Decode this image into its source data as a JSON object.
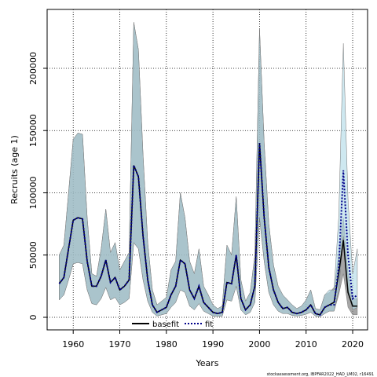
{
  "chart_data": {
    "type": "line",
    "x_label": "Years",
    "y_label": "Recruits (age 1)",
    "footer": "stockassessment.org, IBPFAR2022_HAD_LM02, r16491",
    "x": [
      1957,
      1958,
      1959,
      1960,
      1961,
      1962,
      1963,
      1964,
      1965,
      1966,
      1967,
      1968,
      1969,
      1970,
      1971,
      1972,
      1973,
      1974,
      1975,
      1976,
      1977,
      1978,
      1979,
      1980,
      1981,
      1982,
      1983,
      1984,
      1985,
      1986,
      1987,
      1988,
      1989,
      1990,
      1991,
      1992,
      1993,
      1994,
      1995,
      1996,
      1997,
      1998,
      1999,
      2000,
      2001,
      2002,
      2003,
      2004,
      2005,
      2006,
      2007,
      2008,
      2009,
      2010,
      2011,
      2012,
      2013,
      2014,
      2015,
      2016,
      2017,
      2018,
      2019,
      2020,
      2021
    ],
    "series": [
      {
        "name": "basefit",
        "color": "#000000",
        "band_color": "#808080",
        "values": [
          27000,
          32000,
          55000,
          78000,
          80000,
          79000,
          45000,
          25000,
          25000,
          33000,
          46000,
          28000,
          32000,
          22000,
          25000,
          30000,
          122000,
          113000,
          65000,
          30000,
          10000,
          4000,
          6000,
          8000,
          18000,
          25000,
          46000,
          43000,
          22000,
          15000,
          25000,
          12000,
          8000,
          4000,
          3000,
          4000,
          28000,
          27000,
          50000,
          15000,
          6000,
          10000,
          25000,
          140000,
          80000,
          40000,
          22000,
          12000,
          7000,
          8000,
          4000,
          3000,
          4000,
          6000,
          10000,
          3000,
          2000,
          8000,
          10000,
          12000,
          35000,
          62000,
          20000,
          9000,
          9000
        ],
        "upper": [
          50000,
          58000,
          100000,
          143000,
          148000,
          147000,
          80000,
          35000,
          33000,
          55000,
          87000,
          52000,
          60000,
          38000,
          45000,
          52000,
          237000,
          215000,
          130000,
          60000,
          22000,
          10000,
          13000,
          16000,
          38000,
          45000,
          100000,
          80000,
          45000,
          35000,
          55000,
          25000,
          18000,
          10000,
          7000,
          9000,
          58000,
          50000,
          97000,
          30000,
          13000,
          20000,
          50000,
          232000,
          140000,
          75000,
          42000,
          25000,
          18000,
          14000,
          10000,
          7000,
          9000,
          14000,
          22000,
          7000,
          6000,
          18000,
          20000,
          24000,
          50000,
          80000,
          35000,
          15000,
          15000
        ],
        "lower": [
          14000,
          18000,
          30000,
          43000,
          44000,
          43000,
          22000,
          11000,
          10000,
          15000,
          24000,
          14000,
          16000,
          10000,
          12000,
          15000,
          60000,
          55000,
          30000,
          13000,
          4000,
          1000,
          2000,
          3000,
          8000,
          12000,
          22000,
          20000,
          9000,
          6000,
          11000,
          5000,
          3000,
          1000,
          800,
          1000,
          14000,
          13000,
          25000,
          6000,
          2000,
          4000,
          12000,
          80000,
          45000,
          20000,
          10000,
          5000,
          3000,
          3000,
          1500,
          1000,
          1500,
          2500,
          4000,
          1000,
          500,
          3000,
          5000,
          5000,
          18000,
          35000,
          8000,
          2000,
          2000
        ]
      },
      {
        "name": "fit",
        "color": "#00008b",
        "band_color": "#add8e6",
        "values": [
          27000,
          32000,
          55000,
          78000,
          80000,
          79000,
          45000,
          25000,
          25000,
          33000,
          46000,
          28000,
          32000,
          22000,
          25000,
          30000,
          122000,
          113000,
          65000,
          30000,
          10000,
          4000,
          6000,
          8000,
          18000,
          25000,
          46000,
          43000,
          22000,
          15000,
          25000,
          12000,
          8000,
          4000,
          3000,
          4000,
          28000,
          27000,
          50000,
          15000,
          6000,
          10000,
          25000,
          140000,
          80000,
          40000,
          22000,
          12000,
          7000,
          8000,
          4000,
          3000,
          4000,
          6000,
          10000,
          3000,
          2000,
          8000,
          10000,
          10000,
          40000,
          118000,
          50000,
          15000,
          18000
        ],
        "upper": [
          50000,
          58000,
          100000,
          143000,
          148000,
          147000,
          80000,
          35000,
          33000,
          55000,
          87000,
          52000,
          60000,
          38000,
          45000,
          52000,
          237000,
          215000,
          130000,
          60000,
          22000,
          10000,
          13000,
          16000,
          38000,
          45000,
          100000,
          80000,
          45000,
          35000,
          55000,
          25000,
          18000,
          10000,
          7000,
          9000,
          58000,
          50000,
          97000,
          30000,
          13000,
          20000,
          50000,
          232000,
          140000,
          75000,
          42000,
          25000,
          18000,
          14000,
          10000,
          7000,
          9000,
          14000,
          22000,
          7000,
          6000,
          18000,
          22000,
          22000,
          80000,
          220000,
          95000,
          35000,
          55000
        ],
        "lower": [
          14000,
          18000,
          30000,
          43000,
          44000,
          43000,
          22000,
          11000,
          10000,
          15000,
          24000,
          14000,
          16000,
          10000,
          12000,
          15000,
          60000,
          55000,
          30000,
          13000,
          4000,
          1000,
          2000,
          3000,
          8000,
          12000,
          22000,
          20000,
          9000,
          6000,
          11000,
          5000,
          3000,
          1000,
          800,
          1000,
          14000,
          13000,
          25000,
          6000,
          2000,
          4000,
          12000,
          80000,
          45000,
          20000,
          10000,
          5000,
          3000,
          3000,
          1500,
          1000,
          1500,
          2500,
          4000,
          1000,
          500,
          3000,
          5000,
          5000,
          22000,
          65000,
          22000,
          6000,
          8000
        ]
      }
    ],
    "xlim": [
      1954.4,
      2023.2
    ],
    "xticks": [
      1960,
      1970,
      1980,
      1990,
      2000,
      2010,
      2020
    ],
    "ylim": [
      -10100,
      247300
    ],
    "yticks": [
      0,
      50000,
      100000,
      150000,
      200000
    ],
    "grid": true,
    "legend": "bottom"
  }
}
